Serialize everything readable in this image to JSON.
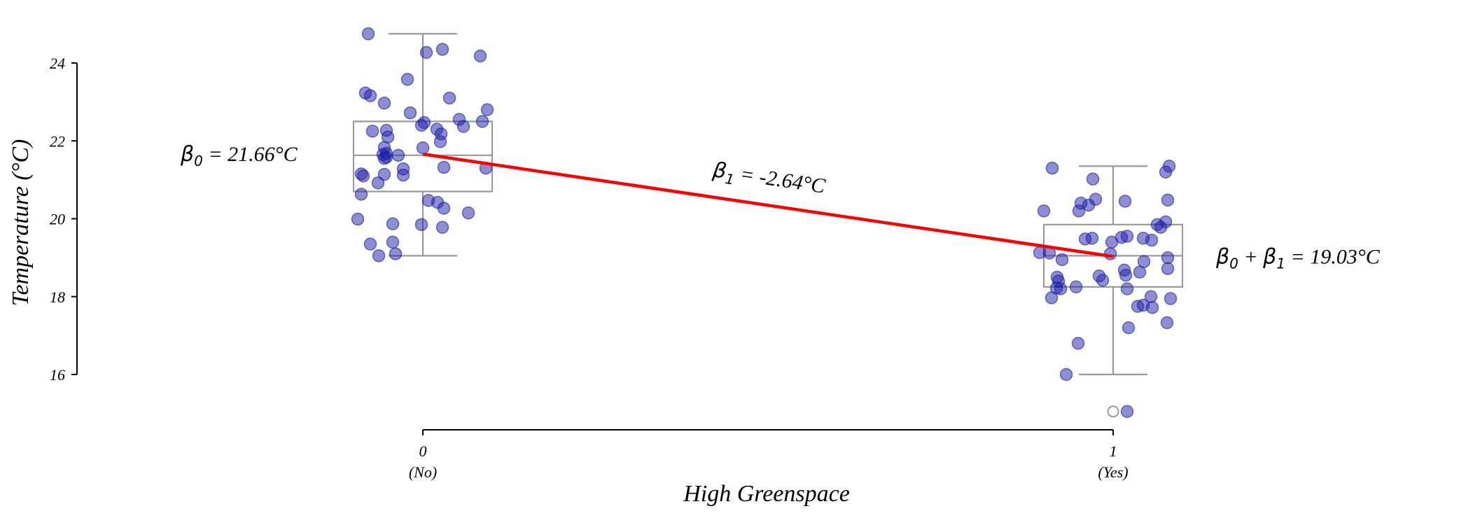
{
  "chart_data": {
    "type": "box",
    "title": "",
    "xlabel": "High Greenspace",
    "ylabel": "Temperature (°C)",
    "ylim": [
      16,
      24
    ],
    "yticks": [
      16,
      18,
      20,
      22,
      24
    ],
    "categories": [
      {
        "tick": "0",
        "sublabel": "(No)",
        "x": 0
      },
      {
        "tick": "1",
        "sublabel": "(Yes)",
        "x": 1
      }
    ],
    "boxes": [
      {
        "x": 0,
        "whisker_low": 19.05,
        "q1": 20.7,
        "median": 21.63,
        "q3": 22.5,
        "whisker_high": 24.75,
        "outliers": []
      },
      {
        "x": 1,
        "whisker_low": 16.0,
        "q1": 18.25,
        "median": 19.05,
        "q3": 19.85,
        "whisker_high": 21.35,
        "outliers": [
          15.05
        ]
      }
    ],
    "points": [
      {
        "x": 0,
        "y": [
          24.75,
          24.35,
          24.27,
          24.18,
          23.58,
          23.23,
          23.16,
          23.1,
          22.97,
          22.8,
          22.72,
          22.55,
          22.5,
          22.47,
          22.4,
          22.37,
          22.3,
          22.27,
          22.25,
          22.18,
          22.1,
          21.98,
          21.83,
          21.82,
          21.68,
          21.65,
          21.63,
          21.58,
          21.55,
          21.32,
          21.3,
          21.28,
          21.15,
          21.14,
          21.12,
          21.1,
          20.92,
          20.63,
          20.47,
          20.42,
          20.27,
          20.15,
          19.99,
          19.87,
          19.85,
          19.78,
          19.4,
          19.35,
          19.1,
          19.05
        ]
      },
      {
        "x": 1,
        "y": [
          21.35,
          21.3,
          21.2,
          21.02,
          20.5,
          20.48,
          20.45,
          20.4,
          20.35,
          20.2,
          20.2,
          19.92,
          19.85,
          19.78,
          19.55,
          19.52,
          19.5,
          19.5,
          19.48,
          19.45,
          19.4,
          19.13,
          19.12,
          19.1,
          19.0,
          18.95,
          18.9,
          18.72,
          18.68,
          18.63,
          18.55,
          18.53,
          18.5,
          18.42,
          18.4,
          18.25,
          18.22,
          18.2,
          18.2,
          18.0,
          17.97,
          17.95,
          17.78,
          17.75,
          17.72,
          17.33,
          17.2,
          16.8,
          16.0,
          15.05
        ]
      }
    ],
    "regression_line": {
      "x": [
        0,
        1
      ],
      "y": [
        21.66,
        19.03
      ],
      "color": "#ff0000"
    },
    "annotations": [
      {
        "symbol": "β",
        "sub": "0",
        "text": " = 21.66°C",
        "anchor": "left",
        "x": 0,
        "y": 21.66
      },
      {
        "symbol": "β",
        "sub": "1",
        "text": " = -2.64°C",
        "anchor": "slope",
        "x": 0.5,
        "y": 20.35
      },
      {
        "symbol": "β",
        "sub": "0",
        "mid": " + ",
        "symbol2": "β",
        "sub2": "1",
        "text": " = 19.03°C",
        "anchor": "right",
        "x": 1,
        "y": 19.03
      }
    ],
    "point_color": "#1d1da8",
    "box_color": "#999999",
    "grid": false,
    "legend": "none"
  }
}
